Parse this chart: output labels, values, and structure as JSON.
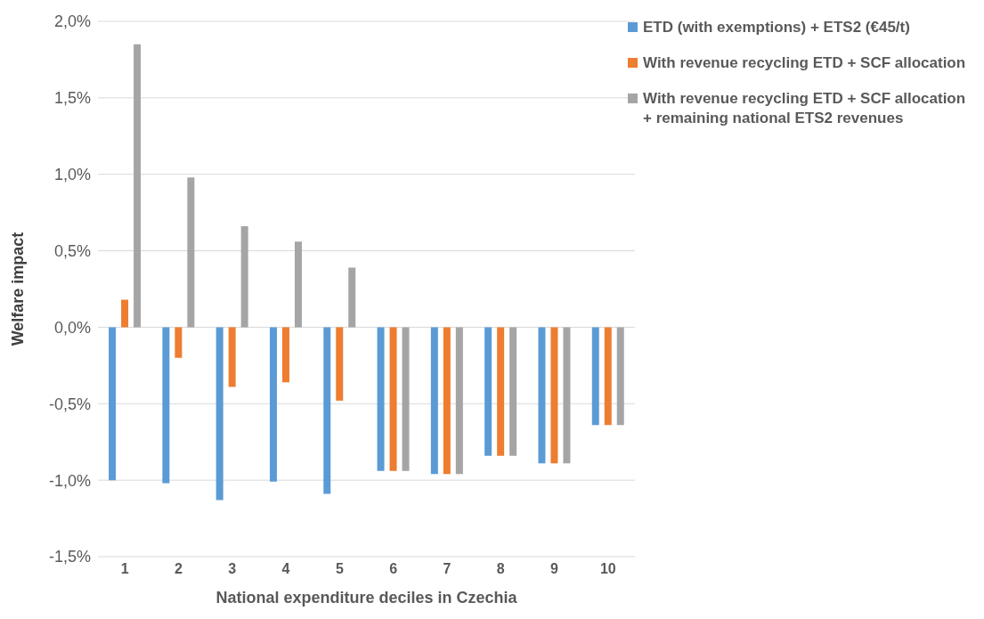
{
  "chart_data": {
    "type": "bar",
    "xlabel": "National expenditure deciles in Czechia",
    "ylabel": "Welfare impact",
    "categories": [
      "1",
      "2",
      "3",
      "4",
      "5",
      "6",
      "7",
      "8",
      "9",
      "10"
    ],
    "series": [
      {
        "name": "ETD (with exemptions) + ETS2 (€45/t)",
        "color": "#5b9bd5",
        "values": [
          -1.0,
          -1.02,
          -1.13,
          -1.01,
          -1.09,
          -0.94,
          -0.96,
          -0.84,
          -0.89,
          -0.64
        ]
      },
      {
        "name": "With revenue recycling ETD + SCF allocation",
        "color": "#ed7d31",
        "values": [
          0.18,
          -0.2,
          -0.39,
          -0.36,
          -0.48,
          -0.94,
          -0.96,
          -0.84,
          -0.89,
          -0.64
        ]
      },
      {
        "name": "With revenue recycling ETD + SCF allocation + remaining national ETS2 revenues",
        "color": "#a5a5a5",
        "values": [
          1.85,
          0.98,
          0.66,
          0.56,
          0.39,
          -0.94,
          -0.96,
          -0.84,
          -0.89,
          -0.64
        ]
      }
    ],
    "ylim": [
      -1.5,
      2.0
    ],
    "yticks": [
      {
        "value": -1.5,
        "label": "-1,5%"
      },
      {
        "value": -1.0,
        "label": "-1,0%"
      },
      {
        "value": -0.5,
        "label": "-0,5%"
      },
      {
        "value": 0,
        "label": "0,0%"
      },
      {
        "value": 0.5,
        "label": "0,5%"
      },
      {
        "value": 1.0,
        "label": "1,0%"
      },
      {
        "value": 1.5,
        "label": "1,5%"
      },
      {
        "value": 2.0,
        "label": "2,0%"
      }
    ],
    "grid": "y",
    "legend": "top right"
  }
}
